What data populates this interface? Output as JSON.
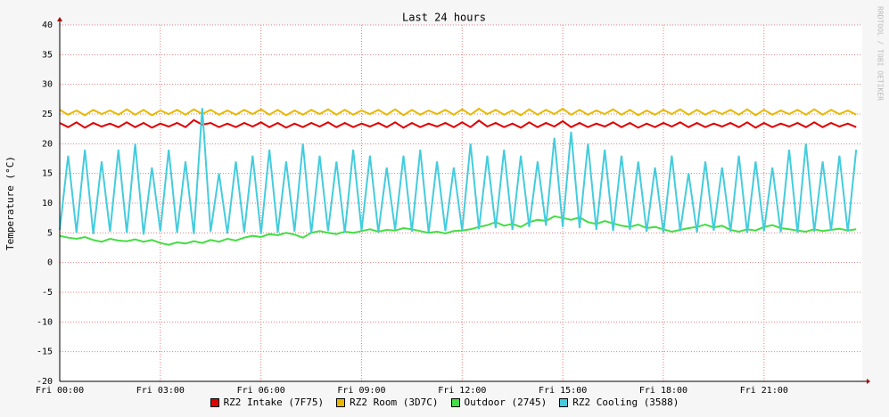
{
  "chart_data": {
    "type": "line",
    "title": "Last 24 hours",
    "y_label": "Temperature (°C)",
    "side_label": "RRDTOOL / TOBI OETIKER",
    "xlim": [
      0,
      23.93
    ],
    "xticks": [
      {
        "value": 0,
        "label": "Fri 00:00"
      },
      {
        "value": 3,
        "label": "Fri 03:00"
      },
      {
        "value": 6,
        "label": "Fri 06:00"
      },
      {
        "value": 9,
        "label": "Fri 09:00"
      },
      {
        "value": 12,
        "label": "Fri 12:00"
      },
      {
        "value": 15,
        "label": "Fri 15:00"
      },
      {
        "value": 18,
        "label": "Fri 18:00"
      },
      {
        "value": 21,
        "label": "Fri 21:00"
      }
    ],
    "ylim": [
      -20,
      40
    ],
    "yticks": [
      -20,
      -15,
      -10,
      -5,
      0,
      5,
      10,
      15,
      20,
      25,
      30,
      35,
      40
    ],
    "grid": true,
    "x": [
      0,
      0.25,
      0.5,
      0.75,
      1,
      1.25,
      1.5,
      1.75,
      2,
      2.25,
      2.5,
      2.75,
      3,
      3.25,
      3.5,
      3.75,
      4,
      4.25,
      4.5,
      4.75,
      5,
      5.25,
      5.5,
      5.75,
      6,
      6.25,
      6.5,
      6.75,
      7,
      7.25,
      7.5,
      7.75,
      8,
      8.25,
      8.5,
      8.75,
      9,
      9.25,
      9.5,
      9.75,
      10,
      10.25,
      10.5,
      10.75,
      11,
      11.25,
      11.5,
      11.75,
      12,
      12.25,
      12.5,
      12.75,
      13,
      13.25,
      13.5,
      13.75,
      14,
      14.25,
      14.5,
      14.75,
      15,
      15.25,
      15.5,
      15.75,
      16,
      16.25,
      16.5,
      16.75,
      17,
      17.25,
      17.5,
      17.75,
      18,
      18.25,
      18.5,
      18.75,
      19,
      19.25,
      19.5,
      19.75,
      20,
      20.25,
      20.5,
      20.75,
      21,
      21.25,
      21.5,
      21.75,
      22,
      22.25,
      22.5,
      22.75,
      23,
      23.25,
      23.5,
      23.75
    ],
    "series": [
      {
        "name": "RZ2 Intake (7F75)",
        "color": "#e00000",
        "values": [
          23.5,
          22.8,
          23.6,
          22.7,
          23.5,
          22.9,
          23.4,
          22.8,
          23.6,
          22.8,
          23.5,
          22.7,
          23.4,
          22.9,
          23.5,
          22.8,
          24.0,
          23.2,
          23.5,
          22.8,
          23.4,
          22.8,
          23.5,
          22.9,
          23.6,
          22.8,
          23.5,
          22.7,
          23.4,
          22.8,
          23.5,
          22.9,
          23.6,
          22.8,
          23.5,
          22.8,
          23.4,
          22.9,
          23.5,
          22.8,
          23.6,
          22.7,
          23.5,
          22.8,
          23.4,
          22.9,
          23.5,
          22.8,
          23.6,
          22.8,
          23.9,
          22.9,
          23.5,
          22.8,
          23.4,
          22.7,
          23.6,
          22.8,
          23.5,
          22.9,
          23.8,
          22.8,
          23.5,
          22.8,
          23.4,
          22.9,
          23.6,
          22.8,
          23.5,
          22.7,
          23.4,
          22.8,
          23.5,
          22.9,
          23.6,
          22.8,
          23.5,
          22.8,
          23.4,
          22.9,
          23.5,
          22.8,
          23.6,
          22.7,
          23.5,
          22.8,
          23.4,
          22.9,
          23.5,
          22.8,
          23.6,
          22.8,
          23.5,
          22.9,
          23.4,
          22.8
        ]
      },
      {
        "name": "RZ2 Room (3D7C)",
        "color": "#e8b800",
        "values": [
          25.7,
          24.9,
          25.6,
          24.8,
          25.7,
          25.0,
          25.6,
          24.9,
          25.8,
          24.9,
          25.7,
          24.8,
          25.6,
          25.0,
          25.7,
          24.9,
          25.8,
          25.0,
          25.7,
          24.9,
          25.6,
          24.9,
          25.7,
          25.0,
          25.8,
          24.9,
          25.7,
          24.8,
          25.6,
          24.9,
          25.7,
          25.0,
          25.8,
          24.9,
          25.7,
          24.9,
          25.6,
          25.0,
          25.7,
          24.9,
          25.8,
          24.8,
          25.7,
          24.9,
          25.6,
          25.0,
          25.7,
          24.9,
          25.8,
          24.9,
          25.9,
          25.0,
          25.7,
          24.9,
          25.6,
          24.8,
          25.8,
          24.9,
          25.7,
          25.0,
          25.9,
          24.9,
          25.7,
          24.9,
          25.6,
          25.0,
          25.8,
          24.9,
          25.7,
          24.8,
          25.6,
          24.9,
          25.7,
          25.0,
          25.8,
          24.9,
          25.7,
          24.9,
          25.6,
          25.0,
          25.7,
          24.9,
          25.8,
          24.8,
          25.7,
          24.9,
          25.6,
          25.0,
          25.7,
          24.9,
          25.8,
          24.9,
          25.7,
          25.0,
          25.6,
          24.9
        ]
      },
      {
        "name": "Outdoor (2745)",
        "color": "#44dd44",
        "values": [
          4.5,
          4.2,
          4.0,
          4.3,
          3.8,
          3.5,
          4.0,
          3.7,
          3.6,
          3.9,
          3.5,
          3.8,
          3.3,
          3.0,
          3.4,
          3.2,
          3.6,
          3.3,
          3.8,
          3.5,
          4.0,
          3.7,
          4.2,
          4.5,
          4.3,
          4.8,
          4.6,
          5.0,
          4.7,
          4.2,
          5.0,
          5.3,
          5.0,
          4.8,
          5.2,
          5.0,
          5.3,
          5.6,
          5.2,
          5.5,
          5.4,
          5.8,
          5.6,
          5.3,
          5.0,
          5.2,
          4.9,
          5.3,
          5.4,
          5.6,
          6.0,
          6.3,
          6.8,
          6.2,
          6.5,
          6.0,
          6.8,
          7.2,
          7.0,
          7.8,
          7.5,
          7.2,
          7.6,
          6.8,
          6.5,
          7.0,
          6.6,
          6.2,
          6.0,
          6.4,
          5.8,
          6.0,
          5.6,
          5.2,
          5.5,
          5.8,
          6.0,
          6.4,
          5.9,
          6.2,
          5.5,
          5.2,
          5.6,
          5.4,
          6.0,
          6.3,
          5.8,
          5.6,
          5.4,
          5.2,
          5.6,
          5.3,
          5.5,
          5.7,
          5.4,
          5.6
        ]
      },
      {
        "name": "RZ2 Cooling (3588)",
        "color": "#44ccdd",
        "values": [
          5.5,
          18,
          5.0,
          19,
          4.8,
          17,
          5.2,
          19,
          5.0,
          20,
          4.7,
          16,
          5.3,
          19,
          5.0,
          17,
          4.8,
          26,
          5.2,
          15,
          4.9,
          17,
          5.1,
          18,
          4.8,
          19,
          5.0,
          17,
          5.2,
          20,
          4.9,
          18,
          5.3,
          17,
          5.0,
          19,
          5.4,
          18,
          5.1,
          16,
          5.5,
          18,
          5.2,
          19,
          5.0,
          17,
          5.3,
          16,
          5.4,
          20,
          5.6,
          18,
          5.8,
          19,
          5.5,
          18,
          6.0,
          17,
          6.2,
          21,
          6.0,
          22,
          5.8,
          20,
          5.5,
          19,
          5.3,
          18,
          5.5,
          17,
          5.2,
          16,
          5.0,
          18,
          5.3,
          15,
          5.1,
          17,
          5.4,
          16,
          5.2,
          18,
          5.0,
          17,
          5.3,
          16,
          5.1,
          19,
          5.0,
          20,
          5.2,
          17,
          5.4,
          18,
          5.2,
          19
        ]
      }
    ]
  }
}
